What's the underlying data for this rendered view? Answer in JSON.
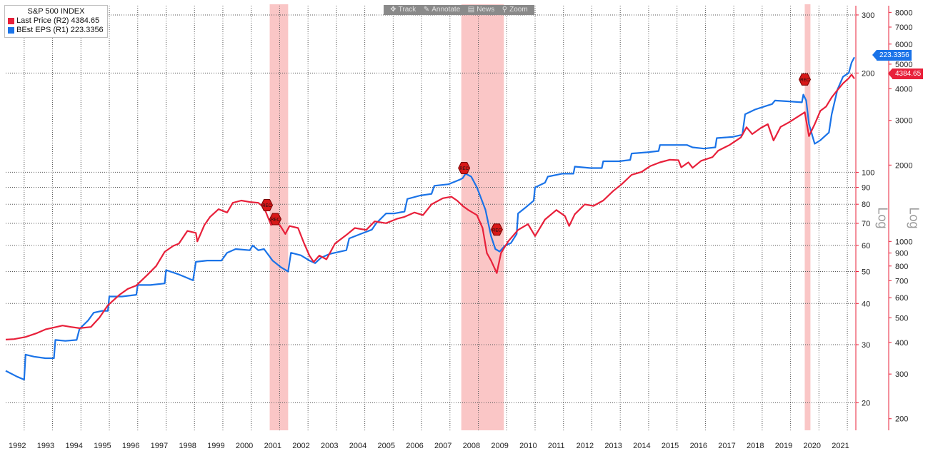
{
  "legend": {
    "title": "S&P 500 INDEX",
    "items": [
      {
        "label": "Last Price  (R2)  4384.65",
        "color": "#e8203a"
      },
      {
        "label": "BEst EPS  (R1)   223.3356",
        "color": "#1a73e8"
      }
    ]
  },
  "toolbar": {
    "track": "Track",
    "annotate": "Annotate",
    "news": "News",
    "zoom": "Zoom"
  },
  "axis_titles": {
    "r1": "Log",
    "r2": "Log"
  },
  "last_value_tags": {
    "eps": "223.3356",
    "price": "4384.65"
  },
  "recession_marker_label": "REC",
  "chart_data": {
    "type": "line",
    "title": "S&P 500 INDEX",
    "x_ticks": [
      "1992",
      "1993",
      "1994",
      "1995",
      "1996",
      "1997",
      "1998",
      "1999",
      "2000",
      "2001",
      "2002",
      "2003",
      "2004",
      "2005",
      "2006",
      "2007",
      "2008",
      "2009",
      "2010",
      "2011",
      "2012",
      "2013",
      "2014",
      "2015",
      "2016",
      "2017",
      "2018",
      "2019",
      "2020",
      "2021"
    ],
    "xlim": [
      1991.9,
      2021.85
    ],
    "grid": true,
    "legend_position": "top-left",
    "recessions": [
      [
        2001.2,
        2001.85
      ],
      [
        2007.95,
        2009.45
      ],
      [
        2020.05,
        2020.25
      ]
    ],
    "recession_markers": [
      {
        "series": "price",
        "x": 2001.1,
        "y": 1390
      },
      {
        "series": "price",
        "x": 2001.4,
        "y": 1225
      },
      {
        "series": "eps",
        "x": 2008.05,
        "y": 103
      },
      {
        "series": "eps",
        "x": 2009.2,
        "y": 67
      },
      {
        "series": "price",
        "x": 2020.05,
        "y": 4350
      }
    ],
    "axes": {
      "r1": {
        "label": "Log",
        "scale": "log",
        "ylim": [
          16.5,
          320
        ],
        "ticks": [
          20,
          30,
          40,
          50,
          60,
          70,
          80,
          90,
          100,
          200,
          300
        ],
        "color": "#222222"
      },
      "r2": {
        "label": "Log",
        "scale": "log",
        "ylim": [
          180,
          8500
        ],
        "ticks": [
          200,
          300,
          400,
          500,
          600,
          700,
          800,
          900,
          1000,
          2000,
          3000,
          4000,
          5000,
          6000,
          7000,
          8000
        ],
        "color": "#e8203a"
      }
    },
    "series": [
      {
        "name": "BEst EPS",
        "axis": "r1",
        "color": "#1a73e8",
        "last": 223.3356,
        "points": [
          [
            1991.9,
            25.0
          ],
          [
            1992.3,
            24.0
          ],
          [
            1992.55,
            23.5
          ],
          [
            1992.6,
            28.0
          ],
          [
            1992.9,
            27.6
          ],
          [
            1993.3,
            27.3
          ],
          [
            1993.6,
            27.3
          ],
          [
            1993.65,
            31.0
          ],
          [
            1994.0,
            30.8
          ],
          [
            1994.4,
            31.0
          ],
          [
            1994.5,
            33.5
          ],
          [
            1994.8,
            35.5
          ],
          [
            1995.0,
            37.5
          ],
          [
            1995.3,
            38.0
          ],
          [
            1995.5,
            38.0
          ],
          [
            1995.55,
            42.0
          ],
          [
            1996.0,
            42.0
          ],
          [
            1996.5,
            42.5
          ],
          [
            1996.55,
            45.5
          ],
          [
            1997.0,
            45.5
          ],
          [
            1997.5,
            46.0
          ],
          [
            1997.55,
            50.5
          ],
          [
            1998.0,
            49.0
          ],
          [
            1998.5,
            47.0
          ],
          [
            1998.6,
            53.5
          ],
          [
            1999.0,
            54.0
          ],
          [
            1999.5,
            54.0
          ],
          [
            1999.7,
            57.0
          ],
          [
            2000.0,
            58.5
          ],
          [
            2000.5,
            58.0
          ],
          [
            2000.6,
            60.0
          ],
          [
            2000.8,
            58.0
          ],
          [
            2001.0,
            58.5
          ],
          [
            2001.3,
            54.0
          ],
          [
            2001.6,
            51.5
          ],
          [
            2001.85,
            50.0
          ],
          [
            2001.95,
            57.0
          ],
          [
            2002.3,
            56.0
          ],
          [
            2002.6,
            54.0
          ],
          [
            2002.8,
            53.0
          ],
          [
            2003.0,
            55.0
          ],
          [
            2003.3,
            56.5
          ],
          [
            2003.5,
            57.0
          ],
          [
            2003.9,
            58.0
          ],
          [
            2004.0,
            63.0
          ],
          [
            2004.4,
            65.0
          ],
          [
            2004.8,
            67.0
          ],
          [
            2004.95,
            70.0
          ],
          [
            2005.3,
            75.0
          ],
          [
            2005.6,
            75.0
          ],
          [
            2005.95,
            76.0
          ],
          [
            2006.05,
            83.0
          ],
          [
            2006.5,
            85.0
          ],
          [
            2006.9,
            86.0
          ],
          [
            2007.0,
            91.0
          ],
          [
            2007.5,
            92.0
          ],
          [
            2007.9,
            95.0
          ],
          [
            2008.0,
            96.0
          ],
          [
            2008.1,
            99.0
          ],
          [
            2008.3,
            97.0
          ],
          [
            2008.5,
            90.0
          ],
          [
            2008.8,
            77.0
          ],
          [
            2009.0,
            64.0
          ],
          [
            2009.15,
            58.5
          ],
          [
            2009.3,
            57.5
          ],
          [
            2009.5,
            60.0
          ],
          [
            2009.7,
            61.0
          ],
          [
            2009.9,
            65.0
          ],
          [
            2009.95,
            75.0
          ],
          [
            2010.2,
            78.0
          ],
          [
            2010.5,
            82.0
          ],
          [
            2010.55,
            90.0
          ],
          [
            2010.9,
            93.0
          ],
          [
            2011.0,
            97.0
          ],
          [
            2011.5,
            99.0
          ],
          [
            2011.9,
            99.0
          ],
          [
            2011.95,
            104.0
          ],
          [
            2012.5,
            103.0
          ],
          [
            2012.9,
            103.0
          ],
          [
            2012.95,
            108.0
          ],
          [
            2013.5,
            108.0
          ],
          [
            2013.9,
            109.0
          ],
          [
            2013.95,
            114.0
          ],
          [
            2014.5,
            115.0
          ],
          [
            2014.9,
            116.0
          ],
          [
            2014.95,
            121.0
          ],
          [
            2015.5,
            121.0
          ],
          [
            2015.9,
            121.0
          ],
          [
            2016.1,
            119.0
          ],
          [
            2016.5,
            118.0
          ],
          [
            2016.9,
            119.0
          ],
          [
            2016.95,
            127.0
          ],
          [
            2017.5,
            128.0
          ],
          [
            2017.85,
            130.0
          ],
          [
            2017.95,
            150.0
          ],
          [
            2018.3,
            155.0
          ],
          [
            2018.6,
            158.0
          ],
          [
            2018.9,
            161.0
          ],
          [
            2019.0,
            165.0
          ],
          [
            2019.5,
            164.0
          ],
          [
            2019.95,
            163.0
          ],
          [
            2020.0,
            172.0
          ],
          [
            2020.1,
            165.0
          ],
          [
            2020.2,
            140.0
          ],
          [
            2020.4,
            122.0
          ],
          [
            2020.6,
            125.0
          ],
          [
            2020.9,
            132.0
          ],
          [
            2021.0,
            150.0
          ],
          [
            2021.2,
            178.0
          ],
          [
            2021.4,
            195.0
          ],
          [
            2021.6,
            200.0
          ],
          [
            2021.7,
            215.0
          ],
          [
            2021.8,
            223.3356
          ]
        ]
      },
      {
        "name": "Last Price",
        "axis": "r2",
        "color": "#e8203a",
        "last": 4384.65,
        "points": [
          [
            1991.9,
            410
          ],
          [
            1992.2,
            412
          ],
          [
            1992.6,
            420
          ],
          [
            1993.0,
            435
          ],
          [
            1993.3,
            450
          ],
          [
            1993.6,
            458
          ],
          [
            1993.9,
            466
          ],
          [
            1994.2,
            460
          ],
          [
            1994.5,
            455
          ],
          [
            1994.9,
            460
          ],
          [
            1995.2,
            500
          ],
          [
            1995.5,
            560
          ],
          [
            1995.9,
            615
          ],
          [
            1996.2,
            650
          ],
          [
            1996.5,
            670
          ],
          [
            1996.9,
            740
          ],
          [
            1997.2,
            800
          ],
          [
            1997.5,
            910
          ],
          [
            1997.8,
            960
          ],
          [
            1998.0,
            980
          ],
          [
            1998.3,
            1100
          ],
          [
            1998.6,
            1080
          ],
          [
            1998.65,
            1000
          ],
          [
            1998.9,
            1160
          ],
          [
            1999.1,
            1250
          ],
          [
            1999.4,
            1340
          ],
          [
            1999.7,
            1300
          ],
          [
            1999.9,
            1420
          ],
          [
            2000.2,
            1450
          ],
          [
            2000.5,
            1430
          ],
          [
            2000.8,
            1420
          ],
          [
            2001.0,
            1360
          ],
          [
            2001.25,
            1160
          ],
          [
            2001.4,
            1230
          ],
          [
            2001.6,
            1140
          ],
          [
            2001.75,
            1070
          ],
          [
            2001.9,
            1150
          ],
          [
            2002.2,
            1130
          ],
          [
            2002.4,
            990
          ],
          [
            2002.6,
            880
          ],
          [
            2002.75,
            830
          ],
          [
            2002.95,
            880
          ],
          [
            2003.2,
            850
          ],
          [
            2003.5,
            980
          ],
          [
            2003.9,
            1060
          ],
          [
            2004.2,
            1130
          ],
          [
            2004.6,
            1110
          ],
          [
            2004.9,
            1200
          ],
          [
            2005.3,
            1180
          ],
          [
            2005.7,
            1230
          ],
          [
            2005.95,
            1250
          ],
          [
            2006.3,
            1300
          ],
          [
            2006.6,
            1270
          ],
          [
            2006.9,
            1400
          ],
          [
            2007.3,
            1480
          ],
          [
            2007.6,
            1500
          ],
          [
            2007.8,
            1450
          ],
          [
            2008.0,
            1380
          ],
          [
            2008.2,
            1330
          ],
          [
            2008.5,
            1270
          ],
          [
            2008.7,
            1130
          ],
          [
            2008.85,
            900
          ],
          [
            2009.0,
            840
          ],
          [
            2009.2,
            750
          ],
          [
            2009.35,
            900
          ],
          [
            2009.6,
            1000
          ],
          [
            2009.95,
            1110
          ],
          [
            2010.3,
            1170
          ],
          [
            2010.55,
            1050
          ],
          [
            2010.9,
            1220
          ],
          [
            2011.3,
            1330
          ],
          [
            2011.6,
            1260
          ],
          [
            2011.75,
            1150
          ],
          [
            2011.95,
            1280
          ],
          [
            2012.3,
            1400
          ],
          [
            2012.6,
            1380
          ],
          [
            2012.95,
            1450
          ],
          [
            2013.3,
            1580
          ],
          [
            2013.6,
            1680
          ],
          [
            2013.95,
            1830
          ],
          [
            2014.3,
            1880
          ],
          [
            2014.6,
            1980
          ],
          [
            2014.95,
            2050
          ],
          [
            2015.3,
            2100
          ],
          [
            2015.6,
            2090
          ],
          [
            2015.7,
            1960
          ],
          [
            2015.95,
            2050
          ],
          [
            2016.1,
            1950
          ],
          [
            2016.4,
            2080
          ],
          [
            2016.8,
            2150
          ],
          [
            2017.0,
            2280
          ],
          [
            2017.4,
            2400
          ],
          [
            2017.8,
            2570
          ],
          [
            2018.0,
            2820
          ],
          [
            2018.2,
            2650
          ],
          [
            2018.5,
            2800
          ],
          [
            2018.75,
            2900
          ],
          [
            2018.95,
            2500
          ],
          [
            2019.2,
            2830
          ],
          [
            2019.5,
            2950
          ],
          [
            2019.8,
            3100
          ],
          [
            2020.05,
            3230
          ],
          [
            2020.2,
            2600
          ],
          [
            2020.4,
            2900
          ],
          [
            2020.6,
            3270
          ],
          [
            2020.8,
            3400
          ],
          [
            2021.0,
            3700
          ],
          [
            2021.2,
            3950
          ],
          [
            2021.4,
            4200
          ],
          [
            2021.6,
            4400
          ],
          [
            2021.7,
            4550
          ],
          [
            2021.8,
            4384.65
          ]
        ]
      }
    ]
  }
}
